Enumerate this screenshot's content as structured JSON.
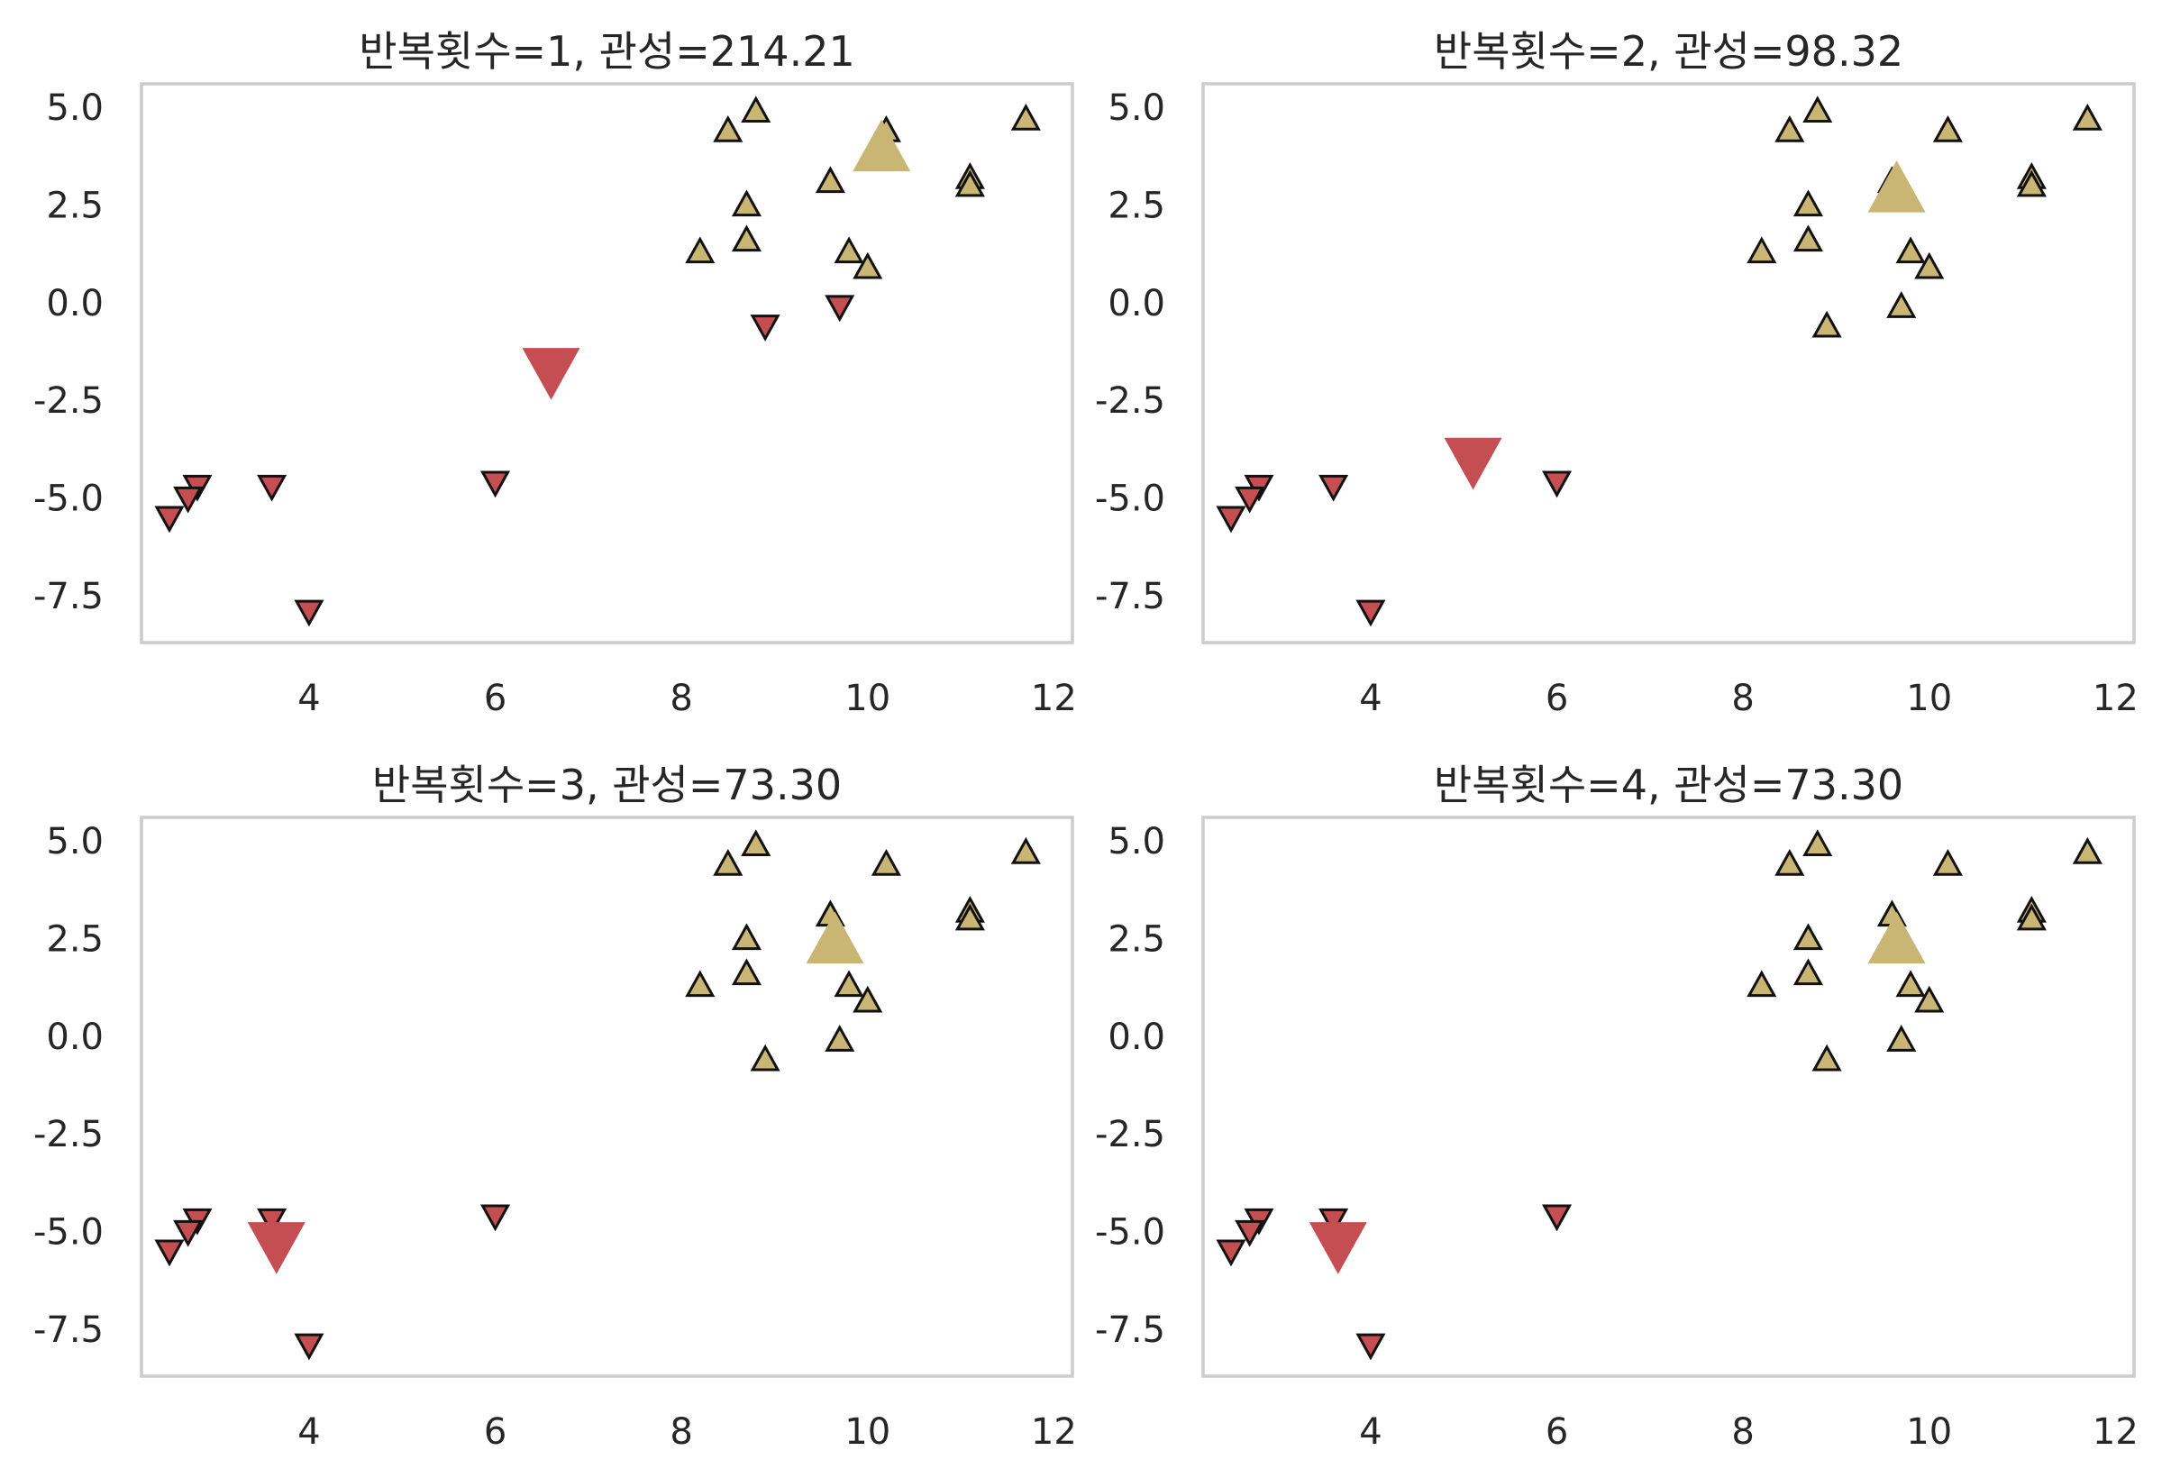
{
  "figure": {
    "background": "#ffffff",
    "frame_color": "#cccccc",
    "text_color": "#262626"
  },
  "chart_data": [
    {
      "type": "scatter",
      "title": "반복횟수=1, 관성=214.21",
      "xlim": [
        2.2,
        12.2
      ],
      "ylim": [
        -8.7,
        5.6
      ],
      "xticks": [
        4,
        6,
        8,
        10,
        12
      ],
      "xtick_labels": [
        "4",
        "6",
        "8",
        "10",
        "12"
      ],
      "yticks": [
        5.0,
        2.5,
        0.0,
        -2.5,
        -5.0,
        -7.5
      ],
      "ytick_labels": [
        "5.0",
        "2.5",
        "0.0",
        "-2.5",
        "-5.0",
        "-7.5"
      ],
      "grid": false,
      "series": [
        {
          "marker": "triangle-up",
          "color": "#c9b574",
          "points": [
            [
              8.8,
              4.9
            ],
            [
              8.5,
              4.4
            ],
            [
              10.2,
              4.4
            ],
            [
              11.7,
              4.7
            ],
            [
              9.6,
              3.1
            ],
            [
              11.1,
              3.2
            ],
            [
              11.1,
              3.0
            ],
            [
              8.7,
              2.5
            ],
            [
              8.7,
              1.6
            ],
            [
              8.2,
              1.3
            ],
            [
              9.8,
              1.3
            ],
            [
              10.0,
              0.9
            ]
          ]
        },
        {
          "marker": "triangle-down",
          "color": "#c44e52",
          "points": [
            [
              9.7,
              -0.1
            ],
            [
              8.9,
              -0.6
            ],
            [
              6.0,
              -4.6
            ],
            [
              3.6,
              -4.7
            ],
            [
              2.8,
              -4.7
            ],
            [
              2.7,
              -5.0
            ],
            [
              2.5,
              -5.5
            ],
            [
              4.0,
              -7.9
            ]
          ]
        }
      ],
      "centers": [
        {
          "marker": "triangle-up",
          "color": "#c9b574",
          "x": 10.15,
          "y": 3.95
        },
        {
          "marker": "triangle-down",
          "color": "#c44e52",
          "x": 6.6,
          "y": -1.75
        }
      ]
    },
    {
      "type": "scatter",
      "title": "반복횟수=2, 관성=98.32",
      "xlim": [
        2.2,
        12.2
      ],
      "ylim": [
        -8.7,
        5.6
      ],
      "xticks": [
        4,
        6,
        8,
        10,
        12
      ],
      "xtick_labels": [
        "4",
        "6",
        "8",
        "10",
        "12"
      ],
      "yticks": [
        5.0,
        2.5,
        0.0,
        -2.5,
        -5.0,
        -7.5
      ],
      "ytick_labels": [
        "5.0",
        "2.5",
        "0.0",
        "-2.5",
        "-5.0",
        "-7.5"
      ],
      "grid": false,
      "series": [
        {
          "marker": "triangle-up",
          "color": "#c9b574",
          "points": [
            [
              8.8,
              4.9
            ],
            [
              8.5,
              4.4
            ],
            [
              10.2,
              4.4
            ],
            [
              11.7,
              4.7
            ],
            [
              9.6,
              3.1
            ],
            [
              11.1,
              3.2
            ],
            [
              11.1,
              3.0
            ],
            [
              8.7,
              2.5
            ],
            [
              8.7,
              1.6
            ],
            [
              8.2,
              1.3
            ],
            [
              9.8,
              1.3
            ],
            [
              10.0,
              0.9
            ],
            [
              9.7,
              -0.1
            ],
            [
              8.9,
              -0.6
            ]
          ]
        },
        {
          "marker": "triangle-down",
          "color": "#c44e52",
          "points": [
            [
              6.0,
              -4.6
            ],
            [
              3.6,
              -4.7
            ],
            [
              2.8,
              -4.7
            ],
            [
              2.7,
              -5.0
            ],
            [
              2.5,
              -5.5
            ],
            [
              4.0,
              -7.9
            ]
          ]
        }
      ],
      "centers": [
        {
          "marker": "triangle-up",
          "color": "#c9b574",
          "x": 9.65,
          "y": 2.9
        },
        {
          "marker": "triangle-down",
          "color": "#c44e52",
          "x": 5.1,
          "y": -4.05
        }
      ]
    },
    {
      "type": "scatter",
      "title": "반복횟수=3, 관성=73.30",
      "xlim": [
        2.2,
        12.2
      ],
      "ylim": [
        -8.7,
        5.6
      ],
      "xticks": [
        4,
        6,
        8,
        10,
        12
      ],
      "xtick_labels": [
        "4",
        "6",
        "8",
        "10",
        "12"
      ],
      "yticks": [
        5.0,
        2.5,
        0.0,
        -2.5,
        -5.0,
        -7.5
      ],
      "ytick_labels": [
        "5.0",
        "2.5",
        "0.0",
        "-2.5",
        "-5.0",
        "-7.5"
      ],
      "grid": false,
      "series": [
        {
          "marker": "triangle-up",
          "color": "#c9b574",
          "points": [
            [
              8.8,
              4.9
            ],
            [
              8.5,
              4.4
            ],
            [
              10.2,
              4.4
            ],
            [
              11.7,
              4.7
            ],
            [
              9.6,
              3.1
            ],
            [
              11.1,
              3.2
            ],
            [
              11.1,
              3.0
            ],
            [
              8.7,
              2.5
            ],
            [
              8.7,
              1.6
            ],
            [
              8.2,
              1.3
            ],
            [
              9.8,
              1.3
            ],
            [
              10.0,
              0.9
            ],
            [
              9.7,
              -0.1
            ],
            [
              8.9,
              -0.6
            ]
          ]
        },
        {
          "marker": "triangle-down",
          "color": "#c44e52",
          "points": [
            [
              6.0,
              -4.6
            ],
            [
              3.6,
              -4.7
            ],
            [
              2.8,
              -4.7
            ],
            [
              2.7,
              -5.0
            ],
            [
              2.5,
              -5.5
            ],
            [
              4.0,
              -7.9
            ]
          ]
        }
      ],
      "centers": [
        {
          "marker": "triangle-up",
          "color": "#c9b574",
          "x": 9.65,
          "y": 2.45
        },
        {
          "marker": "triangle-down",
          "color": "#c44e52",
          "x": 3.65,
          "y": -5.35
        }
      ]
    },
    {
      "type": "scatter",
      "title": "반복횟수=4, 관성=73.30",
      "xlim": [
        2.2,
        12.2
      ],
      "ylim": [
        -8.7,
        5.6
      ],
      "xticks": [
        4,
        6,
        8,
        10,
        12
      ],
      "xtick_labels": [
        "4",
        "6",
        "8",
        "10",
        "12"
      ],
      "yticks": [
        5.0,
        2.5,
        0.0,
        -2.5,
        -5.0,
        -7.5
      ],
      "ytick_labels": [
        "5.0",
        "2.5",
        "0.0",
        "-2.5",
        "-5.0",
        "-7.5"
      ],
      "grid": false,
      "series": [
        {
          "marker": "triangle-up",
          "color": "#c9b574",
          "points": [
            [
              8.8,
              4.9
            ],
            [
              8.5,
              4.4
            ],
            [
              10.2,
              4.4
            ],
            [
              11.7,
              4.7
            ],
            [
              9.6,
              3.1
            ],
            [
              11.1,
              3.2
            ],
            [
              11.1,
              3.0
            ],
            [
              8.7,
              2.5
            ],
            [
              8.7,
              1.6
            ],
            [
              8.2,
              1.3
            ],
            [
              9.8,
              1.3
            ],
            [
              10.0,
              0.9
            ],
            [
              9.7,
              -0.1
            ],
            [
              8.9,
              -0.6
            ]
          ]
        },
        {
          "marker": "triangle-down",
          "color": "#c44e52",
          "points": [
            [
              6.0,
              -4.6
            ],
            [
              3.6,
              -4.7
            ],
            [
              2.8,
              -4.7
            ],
            [
              2.7,
              -5.0
            ],
            [
              2.5,
              -5.5
            ],
            [
              4.0,
              -7.9
            ]
          ]
        }
      ],
      "centers": [
        {
          "marker": "triangle-up",
          "color": "#c9b574",
          "x": 9.65,
          "y": 2.45
        },
        {
          "marker": "triangle-down",
          "color": "#c44e52",
          "x": 3.65,
          "y": -5.35
        }
      ]
    }
  ]
}
